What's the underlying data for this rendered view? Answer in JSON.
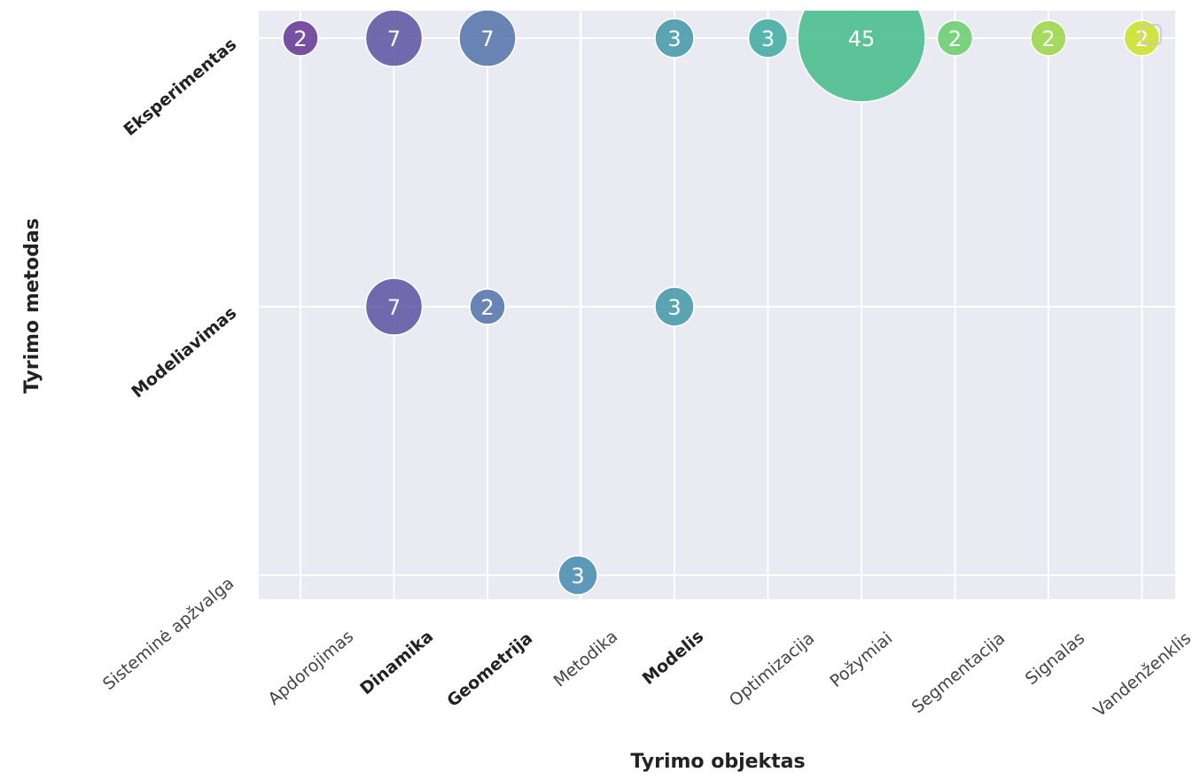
{
  "chart_data": {
    "type": "scatter",
    "subtype": "bubble",
    "xlabel": "Tyrimo objektas",
    "ylabel": "Tyrimo metodas",
    "x_categories": [
      "Sisteminė apžvalga",
      "Apdorojimas",
      "Dinamika",
      "Geometrija",
      "Metodika",
      "Modelis",
      "Optimizacija",
      "Požymiai",
      "Segmentacija",
      "Signalas",
      "Vandenženklis"
    ],
    "x_bold": [
      "Dinamika",
      "Geometrija",
      "Modelis"
    ],
    "y_categories": [
      "Eksperimentas",
      "Modeliavimas"
    ],
    "y_bold": [
      "Eksperimentas",
      "Modeliavimas"
    ],
    "grid": true,
    "colormap": "viridis",
    "colors": {
      "plot_background": "#EAEAF2",
      "grid": "#FFFFFF",
      "bubble_text": "#FFFFFF",
      "Apdorojimas": "#6A3F98",
      "Dinamika": "#645BA6",
      "Geometrija": "#5979AE",
      "Metodika": "#4F8FB3",
      "Modelis": "#4A9BAB",
      "Optimizacija": "#47AEA5",
      "Požymiai": "#4DBE8D",
      "Segmentacija": "#6FCF71",
      "Signalas": "#9CD84F",
      "Vandenženklis": "#CCE230"
    },
    "points": [
      {
        "x": "Apdorojimas",
        "y": "Eksperimentas",
        "value": 2
      },
      {
        "x": "Dinamika",
        "y": "Eksperimentas",
        "value": 7
      },
      {
        "x": "Geometrija",
        "y": "Eksperimentas",
        "value": 7
      },
      {
        "x": "Modelis",
        "y": "Eksperimentas",
        "value": 3
      },
      {
        "x": "Optimizacija",
        "y": "Eksperimentas",
        "value": 3
      },
      {
        "x": "Požymiai",
        "y": "Eksperimentas",
        "value": 45
      },
      {
        "x": "Segmentacija",
        "y": "Eksperimentas",
        "value": 2
      },
      {
        "x": "Signalas",
        "y": "Eksperimentas",
        "value": 2
      },
      {
        "x": "Vandenženklis",
        "y": "Eksperimentas",
        "value": 2
      },
      {
        "x": "Dinamika",
        "y": "Modeliavimas",
        "value": 7
      },
      {
        "x": "Geometrija",
        "y": "Modeliavimas",
        "value": 2
      },
      {
        "x": "Modelis",
        "y": "Modeliavimas",
        "value": 3
      },
      {
        "x": "Metodika",
        "y": "Sisteminė apžvalga",
        "value": 3
      }
    ]
  }
}
